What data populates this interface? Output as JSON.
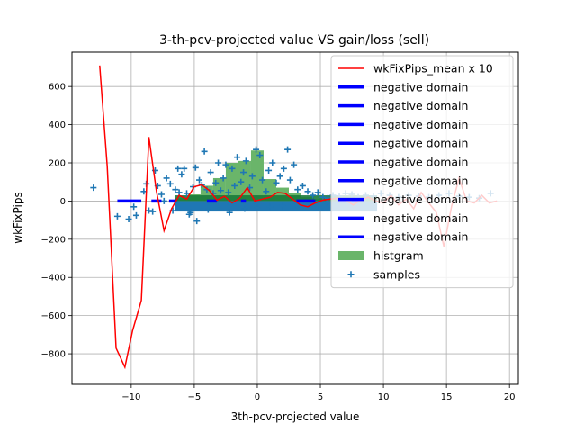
{
  "chart_data": {
    "type": "line",
    "title": "3-th-pcv-projected value VS gain/loss (sell)",
    "xlabel": "3th-pcv-projected value",
    "ylabel": "wkFixPips",
    "xlim": [
      -14.7,
      20.7
    ],
    "ylim": [
      -960,
      780
    ],
    "xticks": [
      -10,
      -5,
      0,
      5,
      10,
      15,
      20
    ],
    "yticks": [
      -800,
      -600,
      -400,
      -200,
      0,
      200,
      400,
      600
    ],
    "grid": true,
    "legend_position": "top-right",
    "colors": {
      "mean_line": "#ff0000",
      "negative_domain": "#0000ff",
      "histogram": "#6ab56a",
      "histogram_dark": "#1a7a3a",
      "samples": "#1f77b4"
    },
    "legend": [
      {
        "label": "wkFixPips_mean x 10",
        "kind": "line"
      },
      {
        "label": "negative domain",
        "kind": "thick"
      },
      {
        "label": "negative domain",
        "kind": "thick"
      },
      {
        "label": "negative domain",
        "kind": "thick"
      },
      {
        "label": "negative domain",
        "kind": "thick"
      },
      {
        "label": "negative domain",
        "kind": "thick"
      },
      {
        "label": "negative domain",
        "kind": "thick"
      },
      {
        "label": "negative domain",
        "kind": "thick"
      },
      {
        "label": "negative domain",
        "kind": "thick"
      },
      {
        "label": "negative domain",
        "kind": "thick"
      },
      {
        "label": "histgram",
        "kind": "patch"
      },
      {
        "label": "samples",
        "kind": "marker"
      }
    ],
    "mean_line": {
      "x": [
        -12.5,
        -11.9,
        -11.2,
        -10.5,
        -9.9,
        -9.2,
        -8.6,
        -8.0,
        -7.4,
        -6.8,
        -6.2,
        -5.6,
        -5.0,
        -4.4,
        -3.8,
        -3.2,
        -2.6,
        -2.0,
        -1.4,
        -0.8,
        -0.2,
        0.4,
        1.0,
        1.6,
        2.2,
        2.8,
        3.4,
        4.0,
        4.6,
        5.2,
        5.8,
        6.4,
        7.0,
        7.6,
        8.2,
        8.8,
        9.4,
        10.0,
        10.6,
        11.2,
        11.8,
        12.4,
        13.0,
        13.6,
        14.2,
        14.8,
        15.4,
        16.0,
        16.6,
        17.2,
        17.8,
        18.4,
        19.0
      ],
      "y": [
        710,
        180,
        -770,
        -870,
        -680,
        -520,
        335,
        50,
        -155,
        -40,
        30,
        10,
        75,
        85,
        55,
        5,
        25,
        -10,
        15,
        70,
        0,
        10,
        20,
        45,
        40,
        10,
        -20,
        -30,
        -10,
        5,
        10,
        15,
        5,
        -20,
        5,
        20,
        0,
        -10,
        30,
        -20,
        10,
        -40,
        45,
        -10,
        -60,
        -240,
        -30,
        120,
        0,
        -10,
        30,
        -10,
        0
      ]
    },
    "histogram": {
      "bins": [
        {
          "x0": -6.5,
          "x1": -5.5,
          "count": 15
        },
        {
          "x0": -5.5,
          "x1": -4.5,
          "count": 35
        },
        {
          "x0": -4.5,
          "x1": -3.5,
          "count": 80
        },
        {
          "x0": -3.5,
          "x1": -2.5,
          "count": 120
        },
        {
          "x0": -2.5,
          "x1": -1.5,
          "count": 200
        },
        {
          "x0": -1.5,
          "x1": -0.5,
          "count": 210
        },
        {
          "x0": -0.5,
          "x1": 0.5,
          "count": 265
        },
        {
          "x0": 0.5,
          "x1": 1.5,
          "count": 115
        },
        {
          "x0": 1.5,
          "x1": 2.5,
          "count": 70
        },
        {
          "x0": 2.5,
          "x1": 3.5,
          "count": 40
        },
        {
          "x0": 3.5,
          "x1": 4.5,
          "count": 20
        },
        {
          "x0": 4.5,
          "x1": 5.5,
          "count": 10
        }
      ]
    },
    "negative_domain_segments": [
      {
        "x0": -11.1,
        "x1": -9.2,
        "y": 0
      },
      {
        "x0": -8.4,
        "x1": -7.6,
        "y": 0
      },
      {
        "x0": -7.0,
        "x1": -6.4,
        "y": 0
      },
      {
        "x0": -4.0,
        "x1": -3.2,
        "y": 0
      },
      {
        "x0": -1.3,
        "x1": -0.9,
        "y": 0
      },
      {
        "x0": 3.1,
        "x1": 4.6,
        "y": 0
      },
      {
        "x0": 6.4,
        "x1": 7.1,
        "y": 0
      },
      {
        "x0": 7.5,
        "x1": 8.0,
        "y": 0
      }
    ],
    "samples_outliers": {
      "x": [
        -13.0,
        -11.1,
        -10.2,
        -9.6,
        -9.0,
        -8.6,
        -8.1,
        -7.9,
        -7.6,
        -7.2,
        -6.9,
        -6.5,
        -6.2,
        -6.0,
        -5.8,
        -5.6,
        -5.3,
        -5.1,
        -4.9,
        -4.6,
        -4.4,
        -4.2,
        -4.0,
        -3.7,
        -3.5,
        -3.3,
        -3.1,
        -2.9,
        -2.7,
        -2.5,
        -2.3,
        -2.0,
        -1.8,
        -1.6,
        -1.3,
        -1.1,
        -0.9,
        -0.6,
        -0.4,
        -0.1,
        0.2,
        0.4,
        0.7,
        0.9,
        1.2,
        1.5,
        1.8,
        2.1,
        2.4,
        2.6,
        2.9,
        3.2,
        3.6,
        4.0,
        4.4,
        4.8,
        5.2,
        5.6,
        6.0,
        6.5,
        7.0,
        7.5,
        8.0,
        8.6,
        9.2,
        9.8,
        10.5,
        11.2,
        12.0,
        12.8,
        13.6,
        14.4,
        15.2,
        16.0,
        16.8,
        17.6,
        18.5,
        -9.8,
        -8.3,
        -6.7,
        -5.4,
        -4.8,
        -3.9,
        -2.2,
        -1.0,
        0.0,
        1.0,
        2.0,
        3.0,
        4.2,
        5.5,
        -8.8,
        -7.4,
        -6.3
      ],
      "y": [
        70,
        -80,
        -95,
        -75,
        50,
        -50,
        160,
        80,
        35,
        120,
        90,
        60,
        45,
        140,
        170,
        40,
        -60,
        75,
        175,
        110,
        85,
        260,
        60,
        150,
        40,
        95,
        200,
        55,
        120,
        190,
        45,
        170,
        80,
        230,
        100,
        150,
        210,
        70,
        130,
        270,
        240,
        110,
        50,
        160,
        200,
        95,
        130,
        170,
        270,
        110,
        190,
        60,
        80,
        50,
        30,
        45,
        20,
        15,
        30,
        25,
        40,
        35,
        20,
        30,
        25,
        40,
        30,
        20,
        30,
        25,
        20,
        30,
        40,
        25,
        20,
        15,
        40,
        -30,
        -55,
        -50,
        -70,
        -105,
        -45,
        -60,
        -40,
        -35,
        -30,
        -25,
        -20,
        -15,
        -10,
        90,
        0,
        170
      ]
    },
    "samples_band": {
      "x_start": -6.5,
      "x_end": 9.5,
      "y_low": -55,
      "y_high": 30
    }
  }
}
